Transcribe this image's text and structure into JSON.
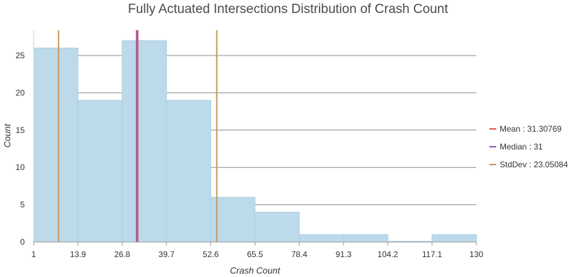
{
  "chart_data": {
    "type": "bar",
    "title": "Fully Actuated Intersections Distribution of Crash Count",
    "xlabel": "Crash Count",
    "ylabel": "Count",
    "x_ticks": [
      "1",
      "13.9",
      "26.8",
      "39.7",
      "52.6",
      "65.5",
      "78.4",
      "91.3",
      "104.2",
      "117.1",
      "130"
    ],
    "y_ticks": [
      "0",
      "5",
      "10",
      "15",
      "20",
      "25"
    ],
    "xlim": [
      1,
      130
    ],
    "ylim": [
      0,
      28.4
    ],
    "bin_edges": [
      1,
      13.9,
      26.8,
      39.7,
      52.6,
      65.5,
      78.4,
      91.3,
      104.2,
      117.1,
      130
    ],
    "values": [
      26,
      19,
      27,
      19,
      6,
      4,
      1,
      1,
      0,
      1
    ],
    "grid": true,
    "legend_position": "right",
    "reference_lines": [
      {
        "label": "Mean : 31.30769",
        "value": 31.30769,
        "color": "#e0524b"
      },
      {
        "label": "Median : 31",
        "value": 31,
        "color": "#9b59b6"
      },
      {
        "label": "StdDev : 23.05084",
        "values": [
          8.25685,
          54.35853
        ],
        "color": "#c9975a"
      }
    ],
    "bar_color": "#bcdaea",
    "bar_edge_color": "#a9cfe2"
  }
}
